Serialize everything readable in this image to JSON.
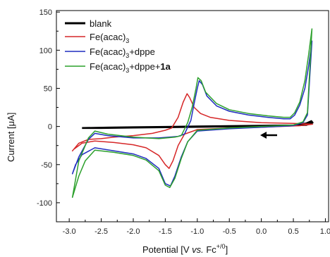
{
  "chart_data": {
    "type": "line",
    "xlabel": "Potential [V vs. Fc+/0]",
    "ylabel": "Current [μA]",
    "xlim": [
      -3.2,
      1.05
    ],
    "ylim": [
      -125,
      152
    ],
    "xticks": [
      -3.0,
      -2.5,
      -2.0,
      -1.5,
      -1.0,
      -0.5,
      0.0,
      0.5,
      1.0
    ],
    "xtick_labels": [
      "-3.0",
      "-2.5",
      "-2.0",
      "-1.5",
      "-1.0",
      "-0.5",
      "0.0",
      "0.5",
      "1.0"
    ],
    "yticks": [
      -100,
      -50,
      0,
      50,
      100,
      150
    ],
    "ytick_labels": [
      "-100",
      "-50",
      "0",
      "50",
      "100",
      "150"
    ],
    "grid": false,
    "legend_position": "top-left",
    "annotation": "scan-direction arrow pointing left",
    "series": [
      {
        "name": "blank",
        "color": "#000000",
        "points": [
          [
            -2.8,
            -2
          ],
          [
            -2.4,
            -1.5
          ],
          [
            -2.0,
            -1
          ],
          [
            -1.5,
            -0.5
          ],
          [
            -1.0,
            0
          ],
          [
            -0.5,
            0.5
          ],
          [
            0.0,
            1
          ],
          [
            0.5,
            1.5
          ],
          [
            0.7,
            4
          ],
          [
            0.78,
            7
          ],
          [
            0.8,
            5
          ],
          [
            0.7,
            2
          ],
          [
            0.4,
            1
          ],
          [
            0.0,
            0.5
          ],
          [
            -0.5,
            0
          ],
          [
            -1.0,
            -0.5
          ],
          [
            -1.5,
            -1
          ],
          [
            -2.0,
            -1.5
          ],
          [
            -2.5,
            -2
          ],
          [
            -2.8,
            -2
          ]
        ]
      },
      {
        "name": "Fe(acac)3",
        "color": "#d62728",
        "points": [
          [
            -1.5,
            -5
          ],
          [
            -1.4,
            -2
          ],
          [
            -1.3,
            12
          ],
          [
            -1.22,
            32
          ],
          [
            -1.16,
            43
          ],
          [
            -1.12,
            38
          ],
          [
            -1.05,
            25
          ],
          [
            -0.95,
            17
          ],
          [
            -0.8,
            12
          ],
          [
            -0.5,
            8
          ],
          [
            0.0,
            5
          ],
          [
            0.5,
            4
          ],
          [
            0.8,
            3
          ],
          [
            0.6,
            1
          ],
          [
            0.3,
            0
          ],
          [
            0.0,
            -1
          ],
          [
            -0.5,
            -2
          ],
          [
            -1.0,
            -4
          ],
          [
            -1.2,
            -10
          ],
          [
            -1.3,
            -25
          ],
          [
            -1.38,
            -45
          ],
          [
            -1.44,
            -55
          ],
          [
            -1.5,
            -50
          ],
          [
            -1.6,
            -38
          ],
          [
            -1.8,
            -28
          ],
          [
            -2.0,
            -24
          ],
          [
            -2.3,
            -21
          ],
          [
            -2.6,
            -19
          ],
          [
            -2.8,
            -22
          ],
          [
            -2.93,
            -30
          ],
          [
            -2.95,
            -32
          ],
          [
            -2.85,
            -22
          ],
          [
            -2.7,
            -17
          ],
          [
            -2.5,
            -16
          ],
          [
            -2.3,
            -14
          ],
          [
            -2.0,
            -12
          ],
          [
            -1.7,
            -9
          ],
          [
            -1.5,
            -5
          ]
        ]
      },
      {
        "name": "Fe(acac)3+dppe",
        "color": "#1f2dbf",
        "points": [
          [
            -1.2,
            -10
          ],
          [
            -1.1,
            8
          ],
          [
            -1.05,
            30
          ],
          [
            -1.0,
            50
          ],
          [
            -0.97,
            60
          ],
          [
            -0.92,
            55
          ],
          [
            -0.85,
            40
          ],
          [
            -0.7,
            27
          ],
          [
            -0.5,
            20
          ],
          [
            -0.2,
            15
          ],
          [
            0.1,
            12
          ],
          [
            0.35,
            10
          ],
          [
            0.45,
            10
          ],
          [
            0.52,
            15
          ],
          [
            0.6,
            28
          ],
          [
            0.68,
            50
          ],
          [
            0.74,
            80
          ],
          [
            0.79,
            112
          ],
          [
            0.72,
            15
          ],
          [
            0.65,
            5
          ],
          [
            0.5,
            1
          ],
          [
            0.0,
            -1
          ],
          [
            -0.5,
            -3
          ],
          [
            -1.0,
            -6
          ],
          [
            -1.15,
            -20
          ],
          [
            -1.25,
            -40
          ],
          [
            -1.35,
            -65
          ],
          [
            -1.42,
            -78
          ],
          [
            -1.5,
            -75
          ],
          [
            -1.6,
            -55
          ],
          [
            -1.8,
            -42
          ],
          [
            -2.0,
            -36
          ],
          [
            -2.3,
            -32
          ],
          [
            -2.6,
            -28
          ],
          [
            -2.8,
            -37
          ],
          [
            -2.9,
            -50
          ],
          [
            -2.95,
            -62
          ],
          [
            -2.85,
            -40
          ],
          [
            -2.7,
            -17
          ],
          [
            -2.6,
            -9
          ],
          [
            -2.4,
            -12
          ],
          [
            -2.0,
            -15
          ],
          [
            -1.6,
            -15
          ],
          [
            -1.3,
            -13
          ],
          [
            -1.2,
            -10
          ]
        ]
      },
      {
        "name": "Fe(acac)3+dppe+1a",
        "color": "#2ca02c",
        "points": [
          [
            -1.25,
            -12
          ],
          [
            -1.15,
            5
          ],
          [
            -1.08,
            25
          ],
          [
            -1.02,
            50
          ],
          [
            -0.99,
            64
          ],
          [
            -0.94,
            60
          ],
          [
            -0.87,
            45
          ],
          [
            -0.7,
            30
          ],
          [
            -0.5,
            22
          ],
          [
            -0.2,
            17
          ],
          [
            0.1,
            14
          ],
          [
            0.35,
            12
          ],
          [
            0.45,
            12
          ],
          [
            0.52,
            18
          ],
          [
            0.6,
            32
          ],
          [
            0.68,
            60
          ],
          [
            0.74,
            95
          ],
          [
            0.79,
            128
          ],
          [
            0.72,
            18
          ],
          [
            0.65,
            6
          ],
          [
            0.5,
            2
          ],
          [
            0.0,
            0
          ],
          [
            -0.5,
            -2
          ],
          [
            -1.0,
            -5
          ],
          [
            -1.15,
            -20
          ],
          [
            -1.25,
            -42
          ],
          [
            -1.35,
            -68
          ],
          [
            -1.43,
            -80
          ],
          [
            -1.5,
            -77
          ],
          [
            -1.6,
            -58
          ],
          [
            -1.8,
            -44
          ],
          [
            -2.0,
            -38
          ],
          [
            -2.3,
            -34
          ],
          [
            -2.6,
            -31
          ],
          [
            -2.75,
            -45
          ],
          [
            -2.85,
            -65
          ],
          [
            -2.95,
            -93
          ],
          [
            -2.85,
            -45
          ],
          [
            -2.7,
            -15
          ],
          [
            -2.6,
            -6
          ],
          [
            -2.4,
            -10
          ],
          [
            -2.0,
            -14
          ],
          [
            -1.6,
            -16
          ],
          [
            -1.35,
            -14
          ],
          [
            -1.25,
            -12
          ]
        ]
      }
    ]
  },
  "legend": [
    {
      "id": "blank",
      "label": "blank",
      "color": "#000000"
    },
    {
      "id": "fe",
      "label": "Fe(acac)",
      "sub": "3",
      "color": "#d62728"
    },
    {
      "id": "fedppe",
      "label": "Fe(acac)",
      "sub": "3",
      "suffix": "+dppe",
      "color": "#1f2dbf"
    },
    {
      "id": "fedppe1a",
      "label": "Fe(acac)",
      "sub": "3",
      "suffix": "+dppe+",
      "suffix_bold": "1a",
      "color": "#2ca02c"
    }
  ],
  "axis_title_y": {
    "main": "Current [",
    "unit": "μA",
    "close": "]"
  },
  "axis_title_x": {
    "main": "Potential [V ",
    "italic": "vs.",
    "mid": " Fc",
    "sup": "+/0",
    "close": "]"
  }
}
